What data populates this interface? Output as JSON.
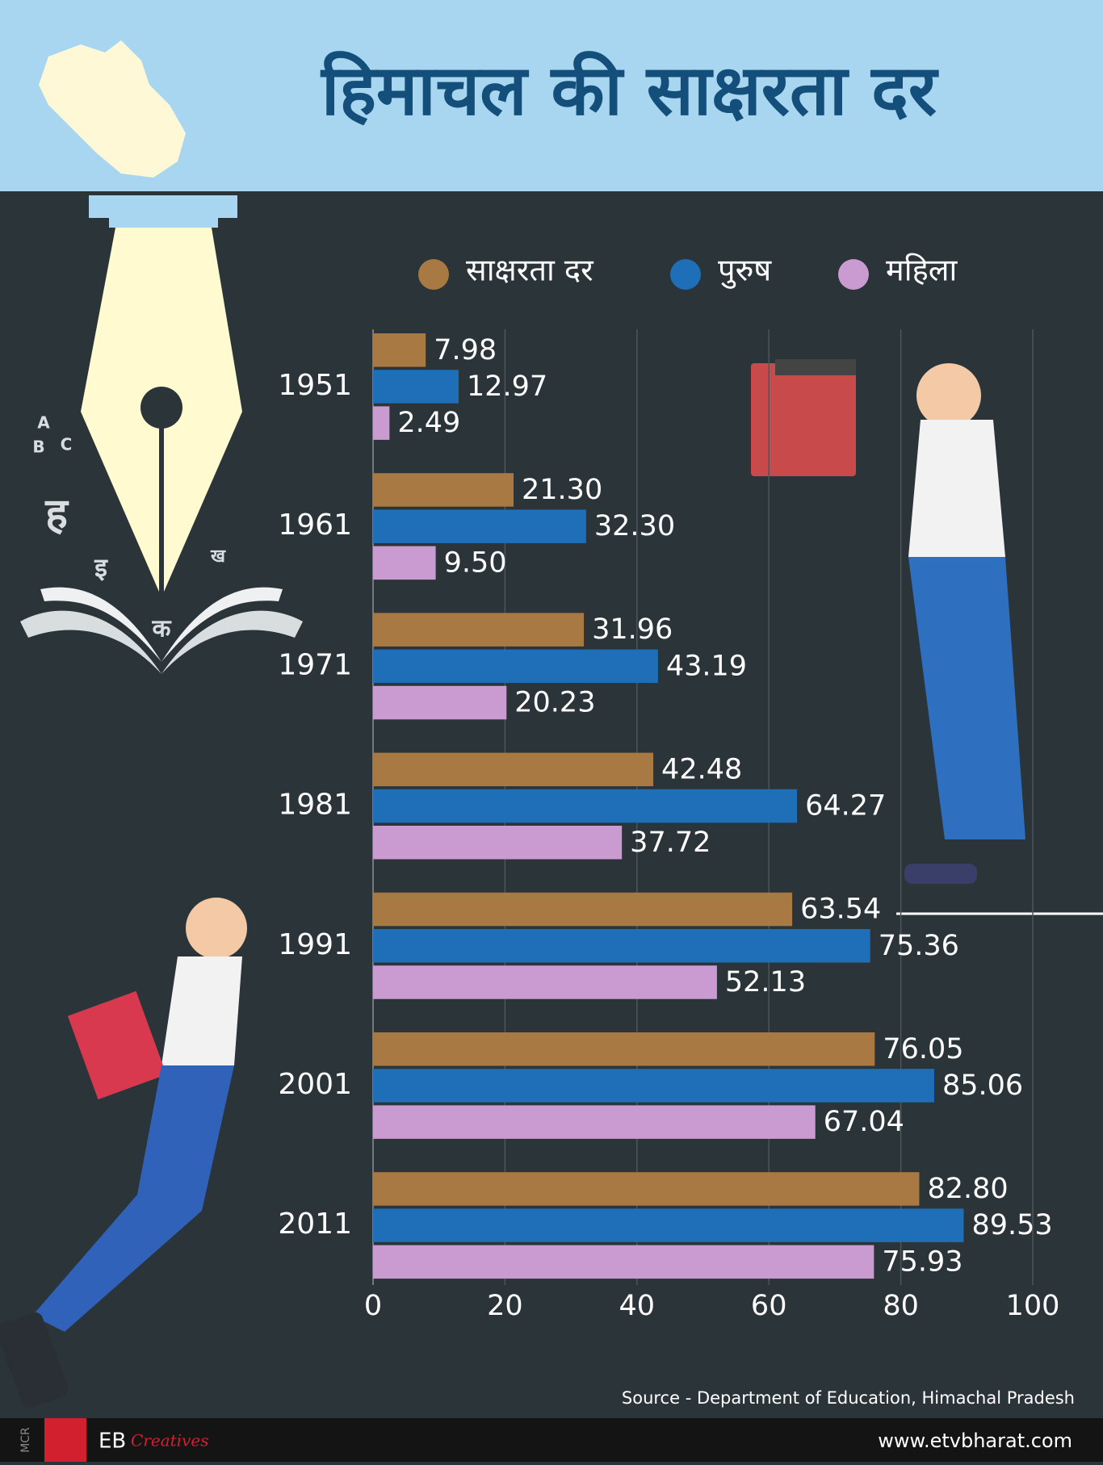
{
  "chart_data": {
    "type": "bar",
    "orientation": "horizontal",
    "title": "हिमाचल की साक्षरता दर",
    "categories": [
      "1951",
      "1961",
      "1971",
      "1981",
      "1991",
      "2001",
      "2011"
    ],
    "series": [
      {
        "name": "साक्षरता दर",
        "color": "#a87942",
        "values": [
          7.98,
          21.3,
          31.96,
          42.48,
          63.54,
          76.05,
          82.8
        ],
        "value_labels": [
          "7.98",
          "21.30",
          "31.96",
          "42.48",
          "63.54",
          "76.05",
          "82.80"
        ]
      },
      {
        "name": "पुरुष",
        "color": "#1f6fb8",
        "values": [
          12.97,
          32.3,
          43.19,
          64.27,
          75.36,
          85.06,
          89.53
        ],
        "value_labels": [
          "12.97",
          "32.30",
          "43.19",
          "64.27",
          "75.36",
          "85.06",
          "89.53"
        ]
      },
      {
        "name": "महिला",
        "color": "#c99bd0",
        "values": [
          2.49,
          9.5,
          20.23,
          37.72,
          52.13,
          67.04,
          75.93
        ],
        "value_labels": [
          "2.49",
          "9.50",
          "20.23",
          "37.72",
          "52.13",
          "67.04",
          "75.93"
        ]
      }
    ],
    "xlim": [
      0,
      100
    ],
    "xticks": [
      0,
      20,
      40,
      60,
      80,
      100
    ],
    "grid": true,
    "legend": "top",
    "source": "Source - Department of Education, Himachal Pradesh"
  },
  "illustration": {
    "letters": [
      "A",
      "B",
      "C",
      "ह",
      "इ",
      "ख",
      "क"
    ]
  },
  "footer": {
    "tag": "MCR",
    "brand": "EB",
    "brand_script": "Creatives",
    "website": "www.etvbharat.com"
  }
}
